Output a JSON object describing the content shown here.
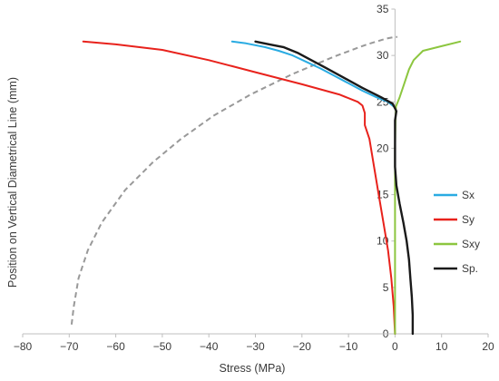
{
  "chart_data": {
    "type": "line",
    "title": "",
    "xlabel": "Stress (MPa)",
    "ylabel": "Position on Vertical Diametrical Line (mm)",
    "xlim": [
      -80,
      20
    ],
    "ylim": [
      0,
      35
    ],
    "x_ticks": [
      "−80",
      "−70",
      "−60",
      "−50",
      "−40",
      "−30",
      "−20",
      "−10",
      "0",
      "10",
      "20"
    ],
    "x_tick_values": [
      -80,
      -70,
      -60,
      -50,
      -40,
      -30,
      -20,
      -10,
      0,
      10,
      20
    ],
    "y_ticks": [
      "0",
      "5",
      "10",
      "15",
      "20",
      "25",
      "30",
      "35"
    ],
    "y_tick_values": [
      0,
      5,
      10,
      15,
      20,
      25,
      30,
      35
    ],
    "grid": false,
    "legend_position": "right",
    "series": [
      {
        "name": "Sx",
        "color": "#29abe2",
        "points": [
          [
            -35,
            31.5
          ],
          [
            -32,
            31.3
          ],
          [
            -28,
            30.9
          ],
          [
            -25,
            30.5
          ],
          [
            -22,
            30.0
          ],
          [
            -19,
            29.3
          ],
          [
            -16,
            28.6
          ],
          [
            -13,
            27.8
          ],
          [
            -10,
            27.0
          ],
          [
            -7,
            26.2
          ],
          [
            -4,
            25.5
          ],
          [
            -1.5,
            25.0
          ],
          [
            -0.3,
            24.5
          ]
        ]
      },
      {
        "name": "Sy",
        "color": "#e8221c",
        "points": [
          [
            -67,
            31.5
          ],
          [
            -60,
            31.2
          ],
          [
            -50,
            30.6
          ],
          [
            -40,
            29.5
          ],
          [
            -30,
            28.2
          ],
          [
            -20,
            26.9
          ],
          [
            -12,
            25.8
          ],
          [
            -8,
            25.0
          ],
          [
            -7,
            24.6
          ],
          [
            -6.5,
            23.8
          ],
          [
            -6.5,
            22.5
          ],
          [
            -5.5,
            21.0
          ],
          [
            -4.5,
            18.0
          ],
          [
            -3.5,
            15.0
          ],
          [
            -2.5,
            12.0
          ],
          [
            -1.5,
            9.0
          ],
          [
            -0.8,
            6.0
          ],
          [
            -0.3,
            3.0
          ],
          [
            0,
            0
          ]
        ]
      },
      {
        "name": "Sxy",
        "color": "#8cc63f",
        "points": [
          [
            14,
            31.5
          ],
          [
            10,
            31.0
          ],
          [
            6,
            30.5
          ],
          [
            4,
            29.5
          ],
          [
            3,
            28.5
          ],
          [
            2,
            27.0
          ],
          [
            1,
            25.5
          ],
          [
            0.2,
            24.5
          ],
          [
            0.1,
            23.0
          ],
          [
            0,
            20.0
          ],
          [
            0,
            15.0
          ],
          [
            0,
            10.0
          ],
          [
            0,
            5.0
          ],
          [
            0,
            0
          ]
        ]
      },
      {
        "name": "Sp.",
        "color": "#1a1a1a",
        "points": [
          [
            -30,
            31.5
          ],
          [
            -27,
            31.2
          ],
          [
            -24,
            30.9
          ],
          [
            -21,
            30.3
          ],
          [
            -18,
            29.5
          ],
          [
            -15,
            28.7
          ],
          [
            -11,
            27.6
          ],
          [
            -7,
            26.5
          ],
          [
            -3,
            25.5
          ],
          [
            -0.5,
            24.8
          ],
          [
            0.3,
            24.0
          ],
          [
            0,
            23.0
          ],
          [
            0,
            21.0
          ],
          [
            0,
            18.0
          ],
          [
            0.3,
            16.0
          ],
          [
            1,
            14.0
          ],
          [
            1.8,
            12.0
          ],
          [
            2.5,
            10.0
          ],
          [
            3.0,
            8.0
          ],
          [
            3.3,
            6.0
          ],
          [
            3.6,
            4.0
          ],
          [
            3.8,
            2.0
          ],
          [
            3.8,
            0
          ]
        ]
      }
    ],
    "reference_curve": {
      "color": "#999999",
      "style": "dashed",
      "points": [
        [
          -69.5,
          1
        ],
        [
          -69,
          3
        ],
        [
          -68,
          6
        ],
        [
          -66,
          9
        ],
        [
          -63,
          12
        ],
        [
          -58,
          15.5
        ],
        [
          -52,
          18.5
        ],
        [
          -46,
          21.0
        ],
        [
          -39,
          23.5
        ],
        [
          -31,
          25.8
        ],
        [
          -22,
          28.0
        ],
        [
          -13,
          29.9
        ],
        [
          -6,
          31.2
        ],
        [
          -2,
          31.8
        ],
        [
          0,
          32.0
        ],
        [
          0.5,
          32.0
        ]
      ]
    }
  }
}
